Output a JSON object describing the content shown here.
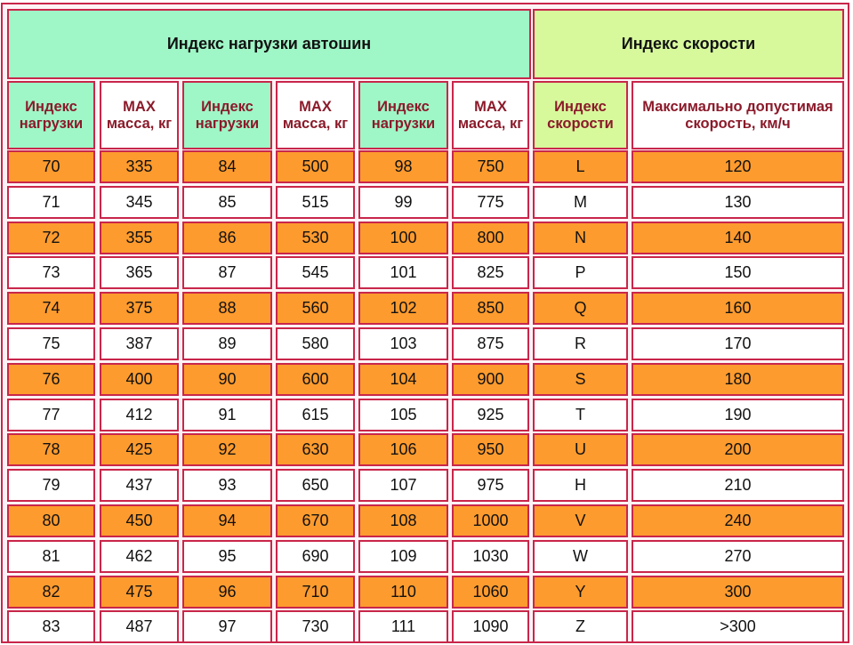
{
  "header": {
    "load_title": "Индекс нагрузки автошин",
    "speed_title": "Индекс скорости"
  },
  "columns": [
    "Индекс нагрузки",
    "MAX масса, кг",
    "Индекс нагрузки",
    "MAX масса, кг",
    "Индекс нагрузки",
    "MAX масса, кг",
    "Индекс скорости",
    "Максимально допустимая скорость, км/ч"
  ],
  "rows": [
    [
      "70",
      "335",
      "84",
      "500",
      "98",
      "750",
      "L",
      "120"
    ],
    [
      "71",
      "345",
      "85",
      "515",
      "99",
      "775",
      "M",
      "130"
    ],
    [
      "72",
      "355",
      "86",
      "530",
      "100",
      "800",
      "N",
      "140"
    ],
    [
      "73",
      "365",
      "87",
      "545",
      "101",
      "825",
      "P",
      "150"
    ],
    [
      "74",
      "375",
      "88",
      "560",
      "102",
      "850",
      "Q",
      "160"
    ],
    [
      "75",
      "387",
      "89",
      "580",
      "103",
      "875",
      "R",
      "170"
    ],
    [
      "76",
      "400",
      "90",
      "600",
      "104",
      "900",
      "S",
      "180"
    ],
    [
      "77",
      "412",
      "91",
      "615",
      "105",
      "925",
      "T",
      "190"
    ],
    [
      "78",
      "425",
      "92",
      "630",
      "106",
      "950",
      "U",
      "200"
    ],
    [
      "79",
      "437",
      "93",
      "650",
      "107",
      "975",
      "H",
      "210"
    ],
    [
      "80",
      "450",
      "94",
      "670",
      "108",
      "1000",
      "V",
      "240"
    ],
    [
      "81",
      "462",
      "95",
      "690",
      "109",
      "1030",
      "W",
      "270"
    ],
    [
      "82",
      "475",
      "96",
      "710",
      "110",
      "1060",
      "Y",
      "300"
    ],
    [
      "83",
      "487",
      "97",
      "730",
      "111",
      "1090",
      "Z",
      ">300"
    ]
  ],
  "colors": {
    "border": "#c9264a",
    "header_green": "#9ff6c7",
    "header_lime": "#d7f99c",
    "row_orange": "#fe9b2e",
    "row_white": "#ffffff",
    "header_text": "#8b1a2a"
  }
}
